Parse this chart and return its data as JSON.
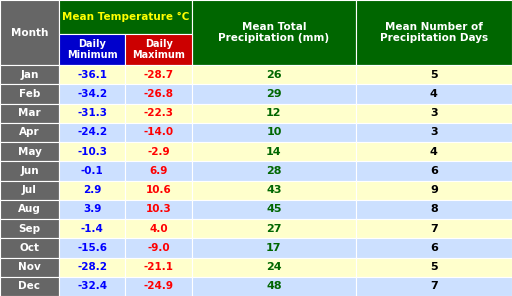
{
  "months": [
    "Jan",
    "Feb",
    "Mar",
    "Apr",
    "May",
    "Jun",
    "Jul",
    "Aug",
    "Sep",
    "Oct",
    "Nov",
    "Dec"
  ],
  "daily_min": [
    -36.1,
    -34.2,
    -31.3,
    -24.2,
    -10.3,
    -0.1,
    2.9,
    3.9,
    -1.4,
    -15.6,
    -28.2,
    -32.4
  ],
  "daily_max": [
    -28.7,
    -26.8,
    -22.3,
    -14.0,
    -2.9,
    6.9,
    10.6,
    10.3,
    4.0,
    -9.0,
    -21.1,
    -24.9
  ],
  "precipitation": [
    26,
    29,
    12,
    10,
    14,
    28,
    43,
    45,
    27,
    17,
    24,
    48
  ],
  "precip_days": [
    5,
    4,
    3,
    3,
    4,
    6,
    9,
    8,
    7,
    6,
    5,
    7
  ],
  "header_bg": "#006600",
  "header_text": "#ffffff",
  "subheader_min_bg": "#0000cc",
  "subheader_max_bg": "#cc0000",
  "subheader_text": "#ffffff",
  "month_bg": "#666666",
  "month_text": "#ffffff",
  "row_bg_light": "#ffffcc",
  "row_bg_alt": "#cce0ff",
  "min_color": "#0000ff",
  "max_color": "#ff0000",
  "precip_color": "#006600",
  "precip_days_color": "#000000",
  "title_temp": "Mean Temperature °C",
  "title_precip": "Mean Total\nPrecipitation (mm)",
  "title_precip_days": "Mean Number of\nPrecipitation Days",
  "col_month": "Month",
  "col_min": "Daily\nMinimum",
  "col_max": "Daily\nMaximum"
}
